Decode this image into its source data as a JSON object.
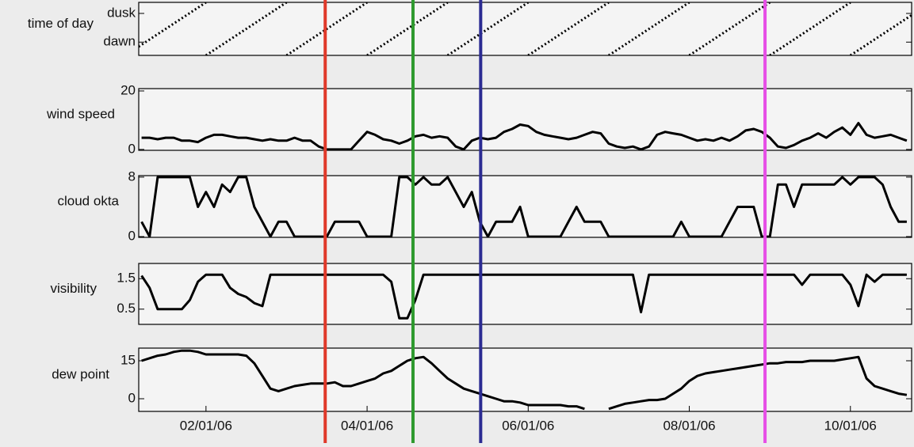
{
  "chart_data": [
    {
      "type": "line",
      "ylabel": "time of day",
      "color": "#000000",
      "linestyle": "dotted",
      "x": [
        0,
        1,
        1,
        1,
        2,
        2,
        2,
        3,
        3,
        3,
        4,
        4,
        4,
        5,
        5,
        5,
        6,
        6,
        6,
        7,
        7,
        7,
        8,
        8,
        8,
        9,
        9,
        9,
        10,
        10
      ],
      "values": [
        0,
        24,
        null,
        0,
        24,
        null,
        0,
        24,
        null,
        0,
        24,
        null,
        0,
        24,
        null,
        0,
        24,
        null,
        0,
        24,
        null,
        0,
        24,
        null,
        0,
        24,
        null,
        0,
        24,
        null
      ],
      "xlim": [
        0.165,
        9.76
      ],
      "ylim": [
        0,
        24
      ],
      "yticks": [
        {
          "value": 6,
          "label": "dawn"
        },
        {
          "value": 19,
          "label": "dusk"
        }
      ]
    },
    {
      "type": "line",
      "ylabel": "wind speed",
      "color": "#000000",
      "x": [
        0.2,
        0.3,
        0.4,
        0.5,
        0.6,
        0.7,
        0.8,
        0.9,
        1.0,
        1.1,
        1.2,
        1.3,
        1.4,
        1.5,
        1.6,
        1.7,
        1.8,
        1.9,
        2.0,
        2.1,
        2.2,
        2.3,
        2.4,
        2.5,
        2.6,
        2.7,
        2.8,
        2.9,
        3.0,
        3.1,
        3.2,
        3.3,
        3.4,
        3.5,
        3.6,
        3.7,
        3.8,
        3.9,
        4.0,
        4.1,
        4.2,
        4.3,
        4.4,
        4.5,
        4.6,
        4.7,
        4.8,
        4.9,
        5.0,
        5.1,
        5.2,
        5.3,
        5.4,
        5.5,
        5.6,
        5.7,
        5.8,
        5.9,
        6.0,
        6.1,
        6.2,
        6.3,
        6.4,
        6.5,
        6.6,
        6.7,
        6.8,
        6.9,
        7.0,
        7.1,
        7.2,
        7.3,
        7.4,
        7.5,
        7.6,
        7.7,
        7.8,
        7.9,
        8.0,
        8.1,
        8.2,
        8.3,
        8.4,
        8.5,
        8.6,
        8.7,
        8.8,
        8.9,
        9.0,
        9.1,
        9.2,
        9.3,
        9.4,
        9.5,
        9.6,
        9.7
      ],
      "values": [
        4,
        4,
        3.5,
        4,
        4,
        3,
        3,
        2.5,
        4,
        5,
        5,
        4.5,
        4,
        4,
        3.5,
        3,
        3.5,
        3,
        3,
        4,
        3,
        3,
        1,
        0,
        0,
        0,
        0,
        3,
        6,
        5,
        3.5,
        3,
        2,
        3,
        4.5,
        5,
        4,
        4.5,
        4,
        1,
        0,
        3,
        4,
        3.5,
        4,
        6,
        7,
        8.5,
        8,
        6,
        5,
        4.5,
        4,
        3.5,
        4,
        5,
        6,
        5.5,
        2,
        1,
        0.5,
        1,
        0,
        1,
        5,
        6,
        5.5,
        5,
        4,
        3,
        3.5,
        3,
        4,
        3,
        4.5,
        6.5,
        7,
        6,
        4,
        1,
        0.5,
        1.5,
        3,
        4,
        5.5,
        4,
        6,
        7.5,
        5,
        9,
        5,
        4,
        4.5,
        5,
        4,
        3
      ],
      "xlim": [
        0.165,
        9.76
      ],
      "ylim": [
        -0.3,
        20.8
      ],
      "yticks": [
        0,
        20
      ]
    },
    {
      "type": "line",
      "ylabel": "cloud okta",
      "color": "#000000",
      "x": [
        0.2,
        0.3,
        0.4,
        0.5,
        0.6,
        0.7,
        0.8,
        0.9,
        1.0,
        1.1,
        1.2,
        1.3,
        1.4,
        1.5,
        1.6,
        1.7,
        1.8,
        1.9,
        2.0,
        2.1,
        2.2,
        2.3,
        2.4,
        2.5,
        2.6,
        2.7,
        2.8,
        2.9,
        3.0,
        3.1,
        3.2,
        3.3,
        3.4,
        3.5,
        3.6,
        3.7,
        3.8,
        3.9,
        4.0,
        4.1,
        4.2,
        4.3,
        4.4,
        4.5,
        4.6,
        4.7,
        4.8,
        4.9,
        5.0,
        5.1,
        5.2,
        5.3,
        5.4,
        5.5,
        5.6,
        5.7,
        5.8,
        5.9,
        6.0,
        6.1,
        6.2,
        6.3,
        6.4,
        6.5,
        6.6,
        6.7,
        6.8,
        6.9,
        7.0,
        7.1,
        7.2,
        7.3,
        7.4,
        7.5,
        7.6,
        7.7,
        7.8,
        7.9,
        8.0,
        8.1,
        8.2,
        8.3,
        8.4,
        8.5,
        8.6,
        8.7,
        8.8,
        8.9,
        9.0,
        9.1,
        9.2,
        9.3,
        9.4,
        9.5,
        9.6,
        9.7
      ],
      "values": [
        2,
        0,
        8,
        8,
        8,
        8,
        8,
        4,
        6,
        4,
        7,
        6,
        8,
        8,
        4,
        2,
        0,
        2,
        2,
        0,
        0,
        0,
        0,
        0,
        2,
        2,
        2,
        2,
        0,
        0,
        0,
        0,
        8,
        8,
        7,
        8,
        7,
        7,
        8,
        6,
        4,
        6,
        2,
        0,
        2,
        2,
        2,
        4,
        0,
        0,
        0,
        0,
        0,
        2,
        4,
        2,
        2,
        2,
        0,
        0,
        0,
        0,
        0,
        0,
        0,
        0,
        0,
        2,
        0,
        0,
        0,
        0,
        0,
        2,
        4,
        4,
        4,
        0,
        0,
        7,
        7,
        4,
        7,
        7,
        7,
        7,
        7,
        8,
        7,
        8,
        8,
        8,
        7,
        4,
        2,
        2
      ],
      "xlim": [
        0.165,
        9.76
      ],
      "ylim": [
        -0.1,
        8.2
      ],
      "yticks": [
        0,
        8
      ]
    },
    {
      "type": "line",
      "ylabel": "visibility",
      "color": "#000000",
      "x": [
        0.2,
        0.3,
        0.4,
        0.5,
        0.6,
        0.7,
        0.8,
        0.9,
        1.0,
        1.1,
        1.2,
        1.3,
        1.4,
        1.5,
        1.6,
        1.7,
        1.8,
        1.9,
        2.0,
        2.1,
        2.2,
        2.3,
        2.4,
        2.5,
        2.6,
        2.7,
        2.8,
        2.9,
        3.0,
        3.1,
        3.2,
        3.3,
        3.4,
        3.5,
        3.6,
        3.7,
        3.8,
        3.9,
        4.0,
        4.1,
        4.2,
        4.3,
        4.4,
        4.5,
        4.6,
        4.7,
        4.8,
        4.9,
        5.0,
        5.1,
        5.2,
        5.3,
        5.4,
        5.5,
        5.6,
        5.7,
        5.8,
        5.9,
        6.0,
        6.1,
        6.2,
        6.3,
        6.4,
        6.5,
        6.6,
        6.7,
        6.8,
        6.9,
        7.0,
        7.1,
        7.2,
        7.3,
        7.4,
        7.5,
        7.6,
        7.7,
        7.8,
        7.9,
        8.0,
        8.1,
        8.2,
        8.3,
        8.4,
        8.5,
        8.6,
        8.7,
        8.8,
        8.9,
        9.0,
        9.1,
        9.2,
        9.3,
        9.4,
        9.5,
        9.6,
        9.7
      ],
      "values": [
        1.6,
        1.2,
        0.5,
        0.5,
        0.5,
        0.5,
        0.8,
        1.4,
        1.63,
        1.63,
        1.63,
        1.2,
        1.0,
        0.9,
        0.7,
        0.6,
        1.63,
        1.63,
        1.63,
        1.63,
        1.63,
        1.63,
        1.63,
        1.63,
        1.63,
        1.63,
        1.63,
        1.63,
        1.63,
        1.63,
        1.63,
        1.4,
        0.2,
        0.2,
        0.8,
        1.63,
        1.63,
        1.63,
        1.63,
        1.63,
        1.63,
        1.63,
        1.63,
        1.63,
        1.63,
        1.63,
        1.63,
        1.63,
        1.63,
        1.63,
        1.63,
        1.63,
        1.63,
        1.63,
        1.63,
        1.63,
        1.63,
        1.63,
        1.63,
        1.63,
        1.63,
        1.63,
        0.4,
        1.63,
        1.63,
        1.63,
        1.63,
        1.63,
        1.63,
        1.63,
        1.63,
        1.63,
        1.63,
        1.63,
        1.63,
        1.63,
        1.63,
        1.63,
        1.63,
        1.63,
        1.63,
        1.63,
        1.3,
        1.63,
        1.63,
        1.63,
        1.63,
        1.63,
        1.3,
        0.6,
        1.63,
        1.4,
        1.63,
        1.63,
        1.63,
        1.63
      ],
      "xlim": [
        0.165,
        9.76
      ],
      "ylim": [
        0,
        2
      ],
      "yticks": [
        0.5,
        1.5
      ]
    },
    {
      "type": "line",
      "ylabel": "dew point",
      "color": "#000000",
      "x": [
        0.2,
        0.3,
        0.4,
        0.5,
        0.6,
        0.7,
        0.8,
        0.9,
        1.0,
        1.1,
        1.2,
        1.3,
        1.4,
        1.5,
        1.6,
        1.7,
        1.8,
        1.9,
        2.0,
        2.1,
        2.2,
        2.3,
        2.4,
        2.5,
        2.6,
        2.7,
        2.8,
        2.9,
        3.0,
        3.1,
        3.2,
        3.3,
        3.4,
        3.5,
        3.6,
        3.7,
        3.8,
        3.9,
        4.0,
        4.1,
        4.2,
        4.3,
        4.4,
        4.5,
        4.6,
        4.7,
        4.8,
        4.9,
        5.0,
        5.1,
        5.2,
        5.3,
        5.4,
        5.5,
        5.6,
        5.7,
        5.8,
        5.9,
        6.0,
        6.1,
        6.2,
        6.3,
        6.4,
        6.5,
        6.6,
        6.7,
        6.8,
        6.9,
        7.0,
        7.1,
        7.2,
        7.3,
        7.4,
        7.5,
        7.6,
        7.7,
        7.8,
        7.9,
        8.0,
        8.1,
        8.2,
        8.3,
        8.4,
        8.5,
        8.6,
        8.7,
        8.8,
        8.9,
        9.0,
        9.1,
        9.2,
        9.3,
        9.4,
        9.5,
        9.6,
        9.7
      ],
      "values": [
        15,
        16,
        17,
        17.5,
        18.5,
        19,
        19,
        18.5,
        17.5,
        17.5,
        17.5,
        17.5,
        17.5,
        17,
        14,
        9,
        4,
        3,
        4,
        5,
        5.5,
        6,
        6,
        6,
        6.5,
        5,
        5,
        6,
        7,
        8,
        10,
        11,
        13,
        15,
        16,
        16.5,
        14,
        11,
        8,
        6,
        4,
        3,
        2,
        1,
        0,
        -1,
        -1,
        -1.5,
        -2.5,
        -2.5,
        -2.5,
        -2.5,
        -2.5,
        -3,
        -3,
        -4,
        null,
        null,
        -4,
        -3,
        -2,
        -1.5,
        -1,
        -0.5,
        -0.5,
        0,
        2,
        4,
        7,
        9,
        10,
        10.5,
        11,
        11.5,
        12,
        12.5,
        13,
        13.5,
        14,
        14,
        14.5,
        14.5,
        14.5,
        15,
        15,
        15,
        15,
        15.5,
        16,
        16.5,
        8,
        5,
        4,
        3,
        2,
        1.5
      ],
      "xlim": [
        0.165,
        9.76
      ],
      "ylim": [
        -5,
        20
      ],
      "yticks": [
        0,
        15
      ],
      "xticks": [
        {
          "value": 1,
          "label": "02/01/06"
        },
        {
          "value": 3,
          "label": "04/01/06"
        },
        {
          "value": 5,
          "label": "06/01/06"
        },
        {
          "value": 7,
          "label": "08/01/06"
        },
        {
          "value": 9,
          "label": "10/01/06"
        }
      ]
    }
  ],
  "event_lines": [
    {
      "x": 2.48,
      "color": "#e0392a"
    },
    {
      "x": 3.57,
      "color": "#2f9a2f"
    },
    {
      "x": 4.41,
      "color": "#2b2b92"
    },
    {
      "x": 7.94,
      "color": "#e64fe6"
    }
  ]
}
